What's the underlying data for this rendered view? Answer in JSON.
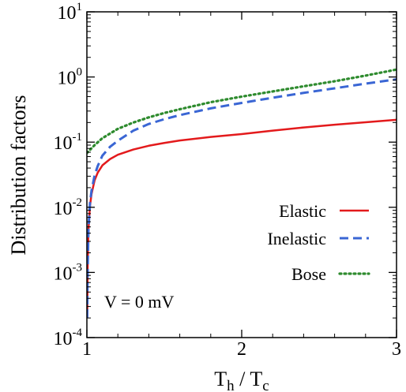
{
  "chart_data": {
    "type": "line",
    "title": "",
    "xlabel": {
      "main": "T",
      "sub1": "h",
      "mid": " / T",
      "sub2": "c"
    },
    "ylabel": "Distribution factors",
    "xlim": [
      1,
      3
    ],
    "ylim": [
      0.0001,
      10
    ],
    "yscale": "log",
    "x_ticks": [
      {
        "value": 1,
        "label": "1"
      },
      {
        "value": 2,
        "label": "2"
      },
      {
        "value": 3,
        "label": "3"
      }
    ],
    "y_ticks": [
      {
        "value": 0.0001,
        "base": "10",
        "exp": "-4"
      },
      {
        "value": 0.001,
        "base": "10",
        "exp": "-3"
      },
      {
        "value": 0.01,
        "base": "10",
        "exp": "-2"
      },
      {
        "value": 0.1,
        "base": "10",
        "exp": "-1"
      },
      {
        "value": 1,
        "base": "10",
        "exp": "0"
      },
      {
        "value": 10,
        "base": "10",
        "exp": "1"
      }
    ],
    "grid": false,
    "legend_position": "center-right",
    "annotation": "V = 0 mV",
    "series": [
      {
        "name": "Elastic",
        "color": "#e31a1c",
        "style": "solid",
        "x": [
          1.002,
          1.005,
          1.01,
          1.02,
          1.03,
          1.05,
          1.07,
          1.1,
          1.15,
          1.2,
          1.3,
          1.4,
          1.5,
          1.6,
          1.8,
          2.0,
          2.2,
          2.4,
          2.6,
          2.8,
          3.0
        ],
        "y": [
          0.0002,
          0.0012,
          0.0045,
          0.0105,
          0.016,
          0.026,
          0.034,
          0.044,
          0.055,
          0.064,
          0.077,
          0.088,
          0.097,
          0.106,
          0.12,
          0.133,
          0.15,
          0.168,
          0.185,
          0.202,
          0.22
        ]
      },
      {
        "name": "Inelastic",
        "color": "#3a66d4",
        "style": "dashed",
        "x": [
          1.002,
          1.005,
          1.01,
          1.02,
          1.03,
          1.05,
          1.07,
          1.1,
          1.15,
          1.2,
          1.3,
          1.4,
          1.5,
          1.6,
          1.8,
          2.0,
          2.2,
          2.4,
          2.6,
          2.8,
          3.0
        ],
        "y": [
          0.0002,
          0.0011,
          0.0046,
          0.0115,
          0.018,
          0.031,
          0.043,
          0.062,
          0.085,
          0.105,
          0.15,
          0.19,
          0.225,
          0.26,
          0.33,
          0.4,
          0.48,
          0.57,
          0.67,
          0.79,
          0.92
        ]
      },
      {
        "name": "Bose",
        "color": "#2e8b2e",
        "style": "dotted",
        "x": [
          1.0,
          1.05,
          1.1,
          1.2,
          1.3,
          1.4,
          1.5,
          1.6,
          1.8,
          2.0,
          2.2,
          2.4,
          2.6,
          2.8,
          3.0
        ],
        "y": [
          0.068,
          0.09,
          0.115,
          0.16,
          0.2,
          0.24,
          0.28,
          0.32,
          0.41,
          0.5,
          0.6,
          0.72,
          0.86,
          1.05,
          1.3
        ]
      }
    ]
  }
}
